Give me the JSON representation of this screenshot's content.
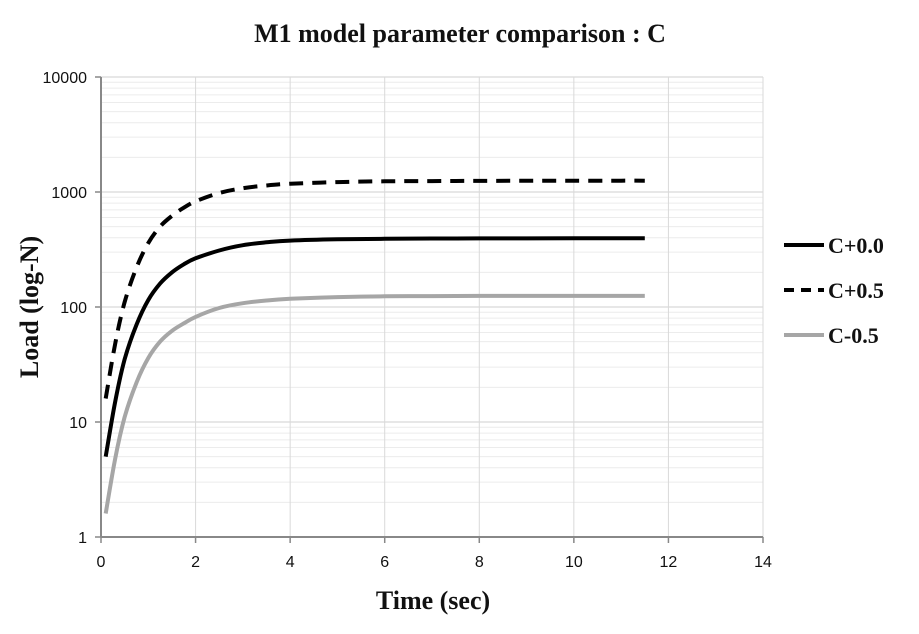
{
  "chart_data": {
    "type": "line",
    "title": "M1 model parameter comparison : C",
    "xlabel": "Time (sec)",
    "ylabel": "Load (log-N)",
    "xlim": [
      0,
      14
    ],
    "ylim": [
      1,
      10000
    ],
    "yscale": "log",
    "x_ticks": [
      "0",
      "2",
      "4",
      "6",
      "8",
      "10",
      "12",
      "14"
    ],
    "y_ticks": [
      "1",
      "10",
      "100",
      "1000",
      "10000"
    ],
    "grid": true,
    "legend_position": "right",
    "x": [
      0.1,
      0.3,
      0.5,
      0.75,
      1.0,
      1.25,
      1.5,
      1.75,
      2.0,
      2.5,
      3.0,
      3.5,
      4.0,
      5.0,
      6.0,
      7.0,
      8.0,
      9.0,
      10.0,
      11.0,
      11.5
    ],
    "series": [
      {
        "name": "C+0.0",
        "color": "#000000",
        "dash": "solid",
        "values": [
          5,
          15,
          35,
          70,
          115,
          160,
          200,
          235,
          265,
          310,
          345,
          365,
          378,
          388,
          392,
          394,
          395,
          395,
          396,
          396,
          396
        ]
      },
      {
        "name": "C+0.5",
        "color": "#000000",
        "dash": "dashed",
        "values": [
          16,
          48,
          110,
          220,
          360,
          500,
          620,
          730,
          830,
          980,
          1080,
          1140,
          1180,
          1220,
          1240,
          1245,
          1250,
          1252,
          1254,
          1255,
          1255
        ]
      },
      {
        "name": "C-0.5",
        "color": "#a6a6a6",
        "dash": "solid",
        "values": [
          1.6,
          4.8,
          11,
          22,
          36,
          50,
          62,
          72,
          82,
          98,
          108,
          114,
          118,
          122,
          124,
          124.5,
          125,
          125,
          125,
          125,
          125
        ]
      }
    ]
  }
}
